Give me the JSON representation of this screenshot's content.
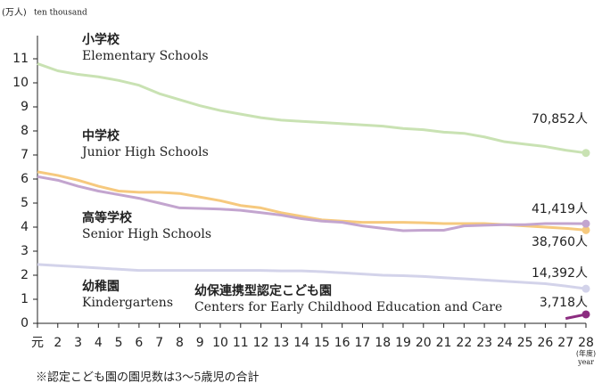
{
  "chart_data": {
    "type": "line",
    "y_unit": "(万人)",
    "y_unit_en": "ten thousand",
    "x_unit": "(年度)",
    "x_unit_en": "year",
    "footnote": "※認定こども園の園児数は3～5歳児の合計",
    "categories": [
      "元",
      "2",
      "3",
      "4",
      "5",
      "6",
      "7",
      "8",
      "9",
      "10",
      "11",
      "12",
      "13",
      "14",
      "15",
      "16",
      "17",
      "18",
      "19",
      "20",
      "21",
      "22",
      "23",
      "24",
      "25",
      "26",
      "27",
      "28"
    ],
    "ylim": [
      0,
      11
    ],
    "yticks": [
      0,
      1,
      2,
      3,
      4,
      5,
      6,
      7,
      8,
      9,
      10,
      11
    ],
    "grid": false,
    "series": [
      {
        "name": "小学校",
        "name_en": "Elementary Schools",
        "color": "#c9e2b3",
        "values": [
          10.8,
          10.5,
          10.35,
          10.25,
          10.1,
          9.9,
          9.55,
          9.3,
          9.05,
          8.85,
          8.7,
          8.55,
          8.45,
          8.4,
          8.35,
          8.3,
          8.25,
          8.2,
          8.1,
          8.05,
          7.95,
          7.9,
          7.75,
          7.55,
          7.45,
          7.35,
          7.2,
          7.0852
        ],
        "value_labels": [
          null,
          null,
          null,
          null,
          null,
          null,
          null,
          null,
          null,
          null,
          null,
          null,
          null,
          null,
          null,
          null,
          null,
          null,
          null,
          null,
          null,
          null,
          null,
          null,
          null,
          null,
          null,
          "70,852人"
        ]
      },
      {
        "name": "中学校",
        "name_en": "Junior High Schools",
        "color": "#f6c97e",
        "values": [
          6.3,
          6.15,
          5.95,
          5.7,
          5.5,
          5.45,
          5.45,
          5.4,
          5.25,
          5.1,
          4.9,
          4.8,
          4.6,
          4.45,
          4.3,
          4.25,
          4.2,
          4.2,
          4.2,
          4.18,
          4.15,
          4.15,
          4.15,
          4.1,
          4.05,
          4.0,
          3.95,
          3.876
        ],
        "value_labels": [
          null,
          null,
          null,
          null,
          null,
          null,
          null,
          null,
          null,
          null,
          null,
          null,
          null,
          null,
          null,
          null,
          null,
          null,
          null,
          null,
          null,
          null,
          null,
          null,
          null,
          null,
          null,
          "38,760人"
        ]
      },
      {
        "name": "高等学校",
        "name_en": "Senior High Schools",
        "color": "#c3a5cf",
        "values": [
          6.1,
          5.95,
          5.7,
          5.5,
          5.35,
          5.2,
          5.0,
          4.8,
          4.78,
          4.75,
          4.7,
          4.6,
          4.5,
          4.35,
          4.25,
          4.2,
          4.05,
          3.95,
          3.85,
          3.87,
          3.87,
          4.05,
          4.08,
          4.1,
          4.1,
          4.15,
          4.15,
          4.1419
        ],
        "value_labels": [
          null,
          null,
          null,
          null,
          null,
          null,
          null,
          null,
          null,
          null,
          null,
          null,
          null,
          null,
          null,
          null,
          null,
          null,
          null,
          null,
          null,
          null,
          null,
          null,
          null,
          null,
          null,
          "41,419人"
        ]
      },
      {
        "name": "幼稚園",
        "name_en": "Kindergartens",
        "color": "#d3d3ea",
        "values": [
          2.45,
          2.4,
          2.35,
          2.3,
          2.25,
          2.2,
          2.2,
          2.2,
          2.2,
          2.2,
          2.2,
          2.2,
          2.18,
          2.18,
          2.15,
          2.1,
          2.05,
          2.0,
          1.98,
          1.95,
          1.9,
          1.85,
          1.8,
          1.75,
          1.7,
          1.65,
          1.55,
          1.4392
        ],
        "value_labels": [
          null,
          null,
          null,
          null,
          null,
          null,
          null,
          null,
          null,
          null,
          null,
          null,
          null,
          null,
          null,
          null,
          null,
          null,
          null,
          null,
          null,
          null,
          null,
          null,
          null,
          null,
          null,
          "14,392人"
        ]
      },
      {
        "name": "幼保連携型認定こども園",
        "name_en": "Centers for Early Childhood Education and Care",
        "color": "#8c2c80",
        "values": [
          null,
          null,
          null,
          null,
          null,
          null,
          null,
          null,
          null,
          null,
          null,
          null,
          null,
          null,
          null,
          null,
          null,
          null,
          null,
          null,
          null,
          null,
          null,
          null,
          null,
          null,
          0.2,
          0.3718
        ],
        "value_labels": [
          null,
          null,
          null,
          null,
          null,
          null,
          null,
          null,
          null,
          null,
          null,
          null,
          null,
          null,
          null,
          null,
          null,
          null,
          null,
          null,
          null,
          null,
          null,
          null,
          null,
          null,
          null,
          "3,718人"
        ]
      }
    ]
  }
}
